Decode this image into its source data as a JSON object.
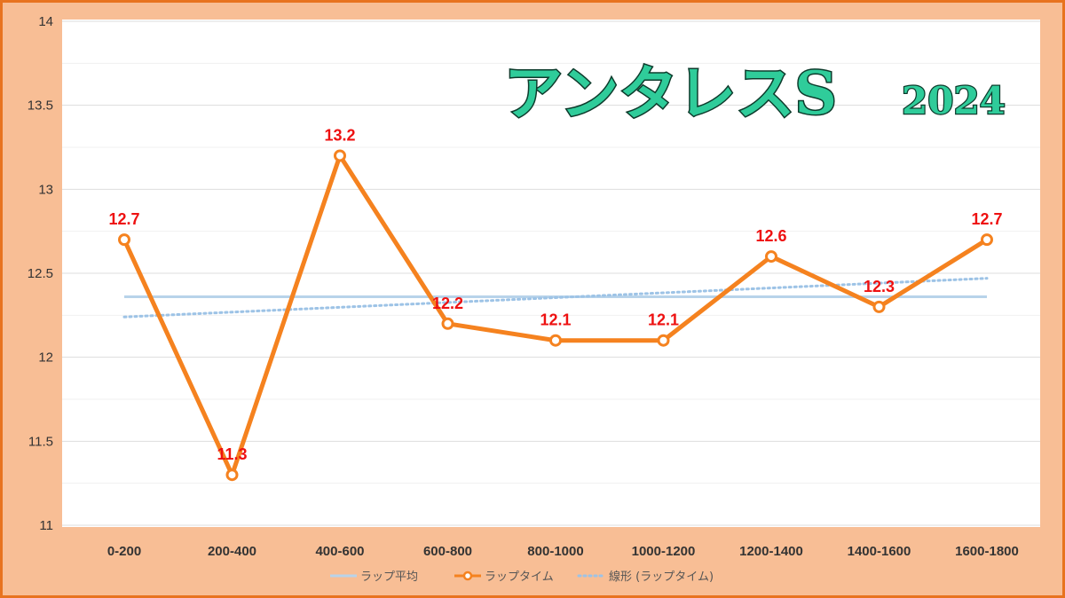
{
  "chart_data": {
    "type": "line",
    "title": "アンタレスS",
    "title_year": "2024",
    "categories": [
      "0-200",
      "200-400",
      "400-600",
      "600-800",
      "800-1000",
      "1000-1200",
      "1200-1400",
      "1400-1600",
      "1600-1800"
    ],
    "series": [
      {
        "name": "ラップ平均",
        "values": [
          12.36,
          12.36,
          12.36,
          12.36,
          12.36,
          12.36,
          12.36,
          12.36,
          12.36
        ],
        "color": "#b8d3ea",
        "style": "solid"
      },
      {
        "name": "ラップタイム",
        "values": [
          12.7,
          11.3,
          13.2,
          12.2,
          12.1,
          12.1,
          12.6,
          12.3,
          12.7
        ],
        "color": "#f5821f",
        "style": "solid-markers",
        "data_labels": [
          "12.7",
          "11.3",
          "13.2",
          "12.2",
          "12.1",
          "12.1",
          "12.6",
          "12.3",
          "12.7"
        ]
      },
      {
        "name": "線形 (ラップタイム)",
        "values": [
          12.24,
          12.27,
          12.3,
          12.33,
          12.36,
          12.39,
          12.41,
          12.44,
          12.47
        ],
        "color": "#9dc3e6",
        "style": "dotted"
      }
    ],
    "ylim": [
      11,
      14
    ],
    "yticks": [
      "11",
      "11.5",
      "12",
      "12.5",
      "13",
      "13.5",
      "14"
    ],
    "grid": true,
    "legend": "bottom",
    "colors": {
      "frame": "#f8be95",
      "border": "#e8731f",
      "grid": "#dddddd",
      "label": "#ee1111"
    }
  }
}
